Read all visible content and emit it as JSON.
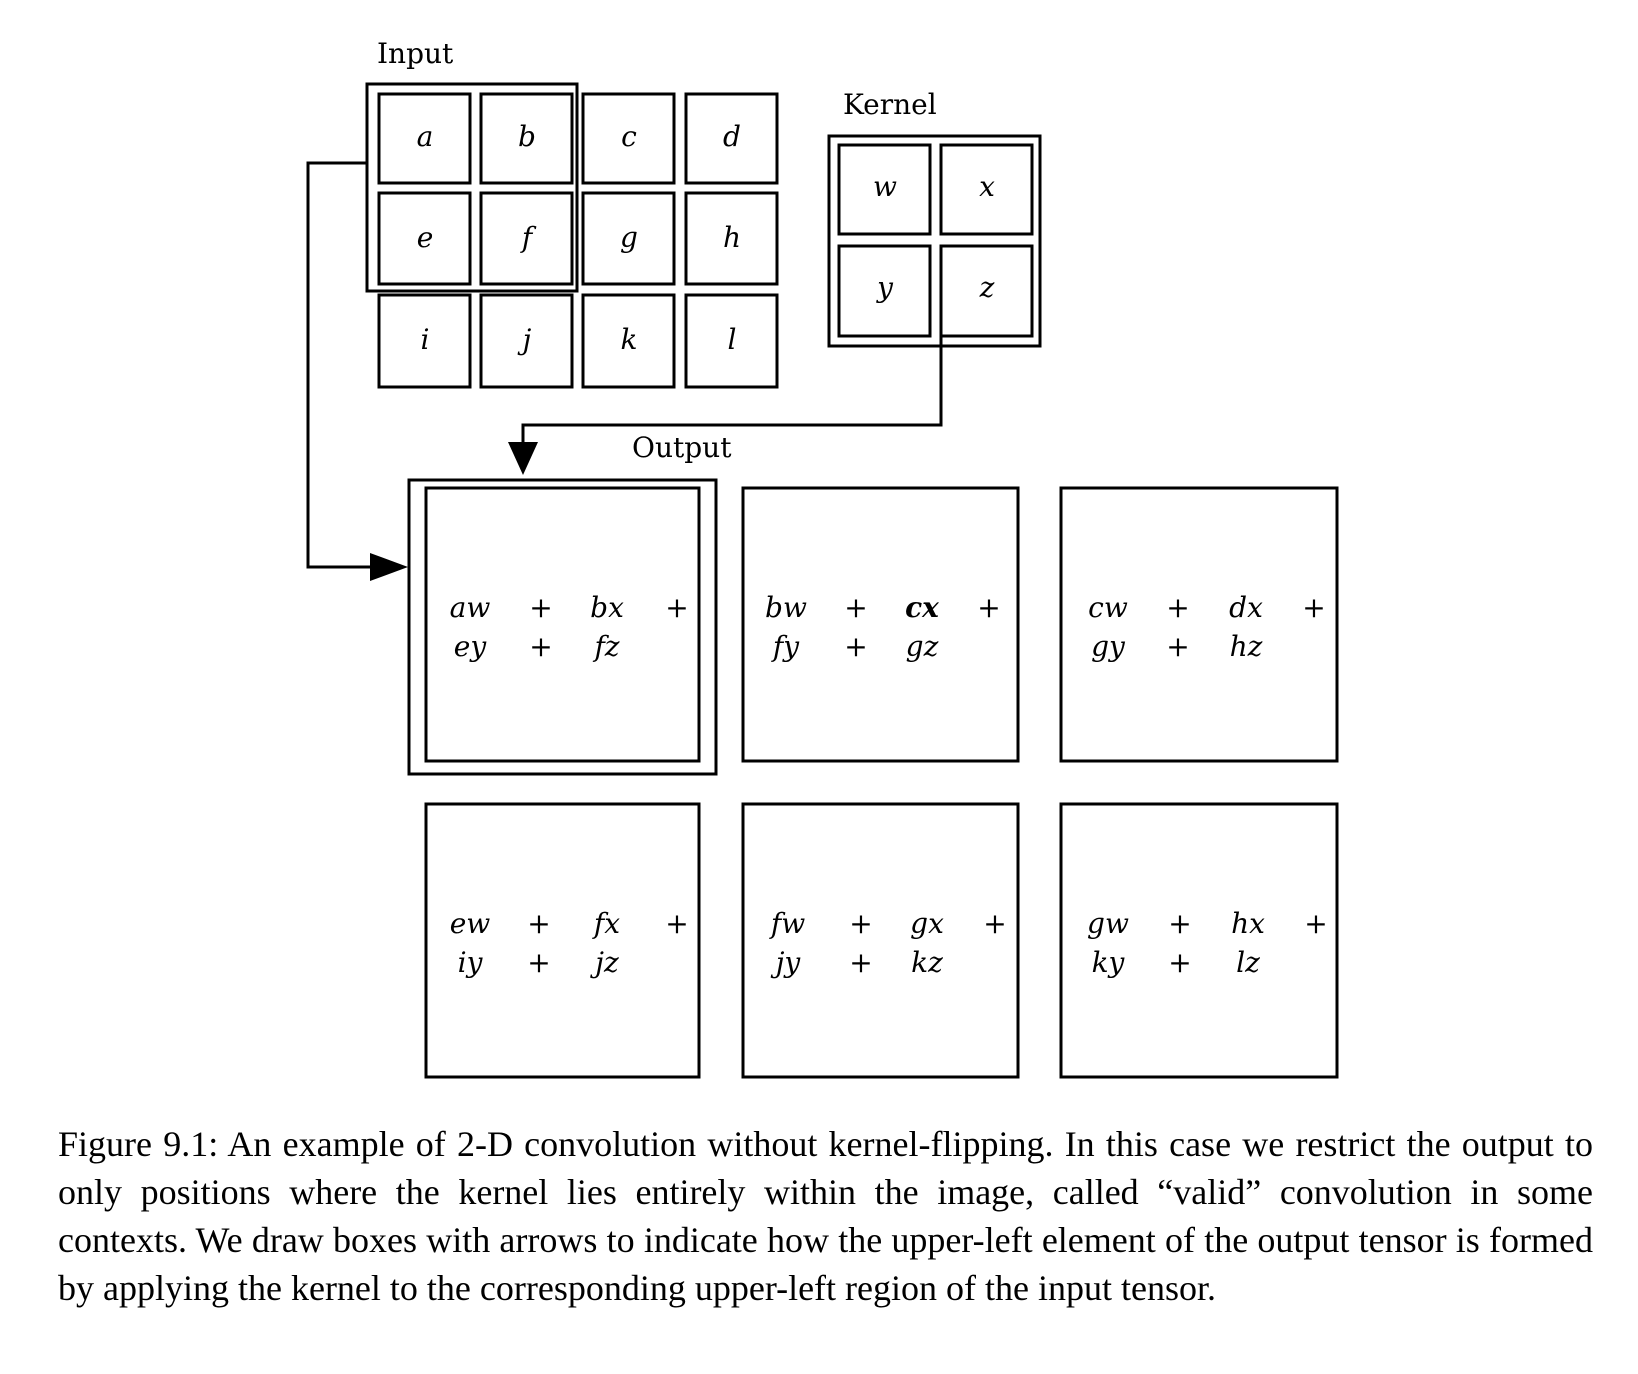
{
  "input": {
    "title": "Input",
    "cells": [
      [
        "a",
        "b",
        "c",
        "d"
      ],
      [
        "e",
        "f",
        "g",
        "h"
      ],
      [
        "i",
        "j",
        "k",
        "l"
      ]
    ]
  },
  "kernel": {
    "title": "Kernel",
    "cells": [
      [
        "w",
        "x"
      ],
      [
        "y",
        "z"
      ]
    ]
  },
  "output": {
    "title": "Output",
    "cells": [
      {
        "line1": [
          "aw",
          "+",
          "bx",
          "+"
        ],
        "line2": [
          "ey",
          "+",
          "fz"
        ]
      },
      {
        "line1": [
          "bw",
          "+",
          "cx",
          "+"
        ],
        "line2": [
          "fy",
          "+",
          "gz"
        ]
      },
      {
        "line1": [
          "cw",
          "+",
          "dx",
          "+"
        ],
        "line2": [
          "gy",
          "+",
          "hz"
        ]
      },
      {
        "line1": [
          "ew",
          "+",
          "fx",
          "+"
        ],
        "line2": [
          "iy",
          "+",
          "jz"
        ]
      },
      {
        "line1": [
          "fw",
          "+",
          "gx",
          "+"
        ],
        "line2": [
          "jy",
          "+",
          "kz"
        ]
      },
      {
        "line1": [
          "gw",
          "+",
          "hx",
          "+"
        ],
        "line2": [
          "ky",
          "+",
          "lz"
        ]
      }
    ]
  },
  "caption": "Figure 9.1: An example of 2-D convolution without kernel-flipping. In this case we restrict the output to only positions where the kernel lies entirely within the image, called “valid” convolution in some contexts. We draw boxes with arrows to indicate how the upper-left element of the output tensor is formed by applying the kernel to the corresponding upper-left region of the input tensor."
}
